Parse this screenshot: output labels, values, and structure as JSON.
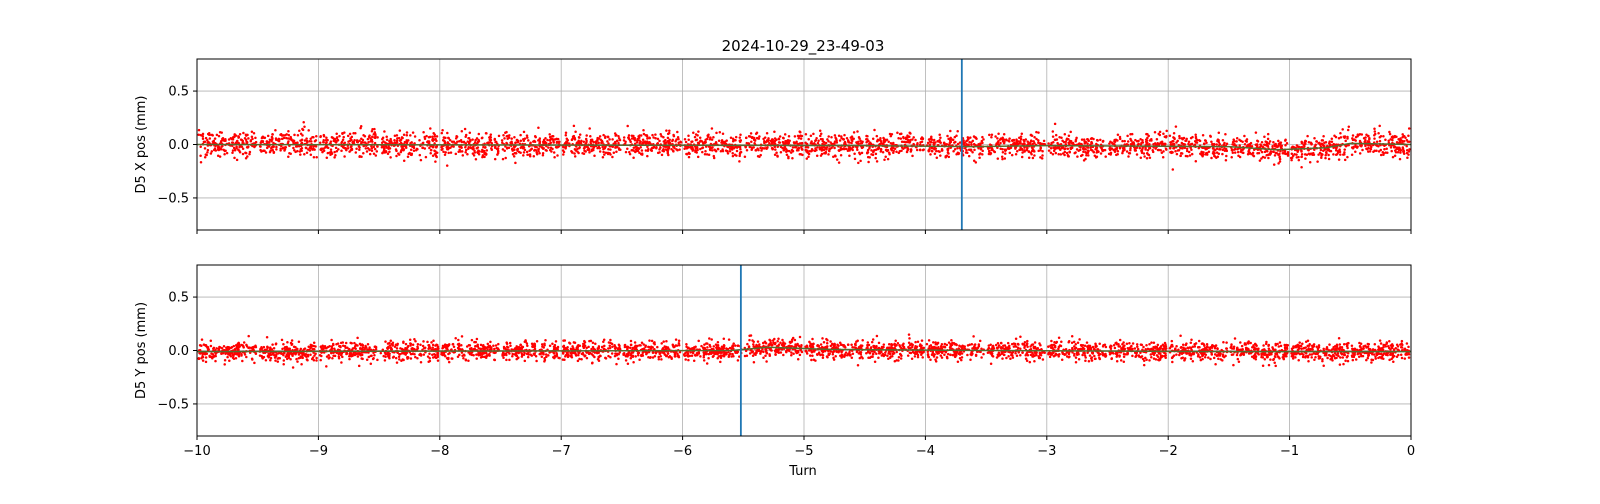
{
  "chart_data": {
    "type": "scatter",
    "title": "2024-10-29_23-49-03",
    "xlabel": "Turn",
    "xlim": [
      -10,
      0
    ],
    "xticks": [
      -10,
      -9,
      -8,
      -7,
      -6,
      -5,
      -4,
      -3,
      -2,
      -1,
      0
    ],
    "xtick_labels": [
      "−10",
      "−9",
      "−8",
      "−7",
      "−6",
      "−5",
      "−4",
      "−3",
      "−2",
      "−1",
      "0"
    ],
    "grid": true,
    "marker_color": "#ff0000",
    "trend_color": "#556b2f",
    "vline_color": "#1f77b4",
    "panels": [
      {
        "ylabel": "D5 X pos (mm)",
        "ylim": [
          -0.8,
          0.8
        ],
        "yticks": [
          0.5,
          0.0,
          -0.5
        ],
        "ytick_labels": [
          "0.5",
          "0.0",
          "−0.5"
        ],
        "vline_x": -3.7,
        "noise_std": 0.055,
        "trend": [
          {
            "x": -10,
            "y": 0.0
          },
          {
            "x": -4.5,
            "y": -0.01
          },
          {
            "x": -3.6,
            "y": -0.02
          },
          {
            "x": -3.0,
            "y": -0.01
          },
          {
            "x": -1.5,
            "y": -0.02
          },
          {
            "x": -1.1,
            "y": -0.05
          },
          {
            "x": -0.7,
            "y": -0.03
          },
          {
            "x": -0.5,
            "y": 0.01
          },
          {
            "x": 0,
            "y": 0.0
          }
        ]
      },
      {
        "ylabel": "D5 Y pos (mm)",
        "ylim": [
          -0.8,
          0.8
        ],
        "yticks": [
          0.5,
          0.0,
          -0.5
        ],
        "ytick_labels": [
          "0.5",
          "0.0",
          "−0.5"
        ],
        "vline_x": -5.52,
        "noise_std": 0.045,
        "trend": [
          {
            "x": -10,
            "y": -0.01
          },
          {
            "x": -5.6,
            "y": 0.0
          },
          {
            "x": -5.3,
            "y": 0.03
          },
          {
            "x": -4.8,
            "y": 0.01
          },
          {
            "x": -3.5,
            "y": 0.0
          },
          {
            "x": -1.5,
            "y": -0.01
          },
          {
            "x": 0,
            "y": -0.01
          }
        ]
      }
    ]
  }
}
